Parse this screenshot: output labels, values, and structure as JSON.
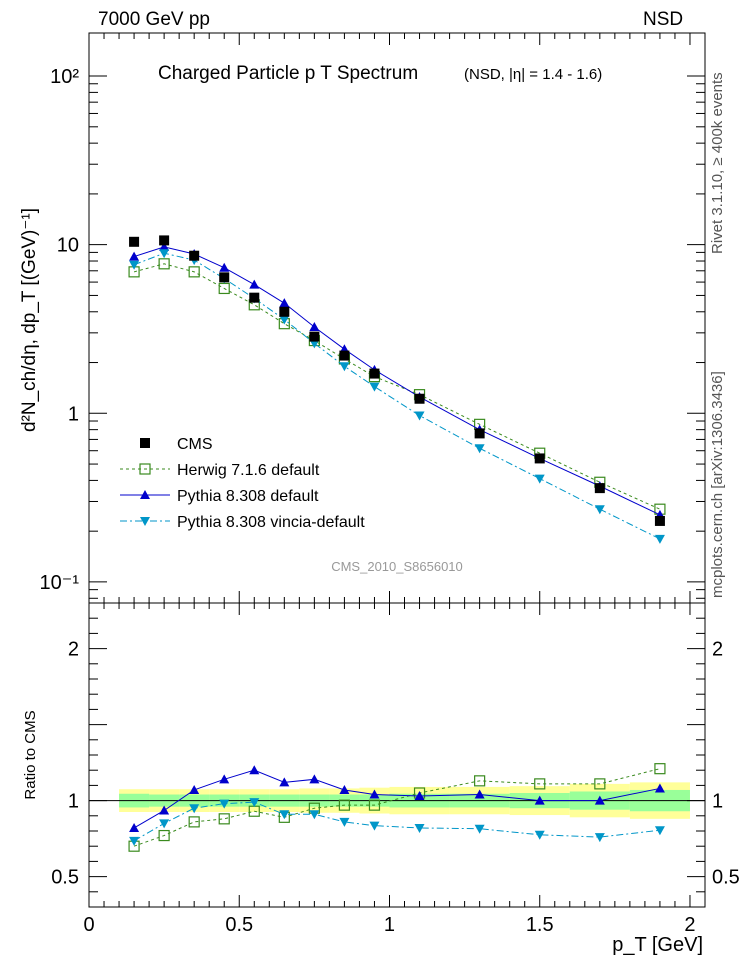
{
  "header": {
    "left": "7000 GeV pp",
    "right": "NSD"
  },
  "side": {
    "rivet": "Rivet 3.1.10, ≥ 400k events",
    "mcplots": "mcplots.cern.ch [arXiv:1306.3436]"
  },
  "chart_data": [
    {
      "type": "scatter",
      "title": "Charged Particle p T Spectrum",
      "subtitle": "(NSD, |η| = 1.4 - 1.6)",
      "watermark": "CMS_2010_S8656010",
      "ylabel": "d²N_ch/dη, dp_T [(GeV)⁻¹]",
      "yscale": "log",
      "xlim": [
        0,
        2.05
      ],
      "ylim": [
        0.075,
        180
      ],
      "yticklabels": [
        "10⁻¹",
        "1",
        "10",
        "10²"
      ],
      "legend_position": "bottom-left",
      "series": [
        {
          "name": "CMS",
          "color": "#000000",
          "marker": "square",
          "x": [
            0.15,
            0.25,
            0.35,
            0.45,
            0.55,
            0.65,
            0.75,
            0.85,
            0.95,
            1.1,
            1.3,
            1.5,
            1.7,
            1.9
          ],
          "y": [
            10.4,
            10.6,
            8.6,
            6.4,
            4.85,
            4.0,
            2.85,
            2.2,
            1.72,
            1.22,
            0.76,
            0.54,
            0.36,
            0.23
          ]
        },
        {
          "name": "Herwig 7.1.6 default",
          "color": "#3a8a1e",
          "marker": "open-square",
          "line": "dotted",
          "x": [
            0.15,
            0.25,
            0.35,
            0.45,
            0.55,
            0.65,
            0.75,
            0.85,
            0.95,
            1.1,
            1.3,
            1.5,
            1.7,
            1.9
          ],
          "y": [
            6.9,
            7.7,
            6.9,
            5.5,
            4.4,
            3.4,
            2.7,
            2.1,
            1.65,
            1.29,
            0.86,
            0.58,
            0.39,
            0.27
          ]
        },
        {
          "name": "Pythia 8.308 default",
          "color": "#0000cc",
          "marker": "triangle-up",
          "line": "solid",
          "x": [
            0.15,
            0.25,
            0.35,
            0.45,
            0.55,
            0.65,
            0.75,
            0.85,
            0.95,
            1.1,
            1.3,
            1.5,
            1.7,
            1.9
          ],
          "y": [
            8.5,
            9.7,
            8.8,
            7.3,
            5.8,
            4.5,
            3.25,
            2.4,
            1.81,
            1.25,
            0.8,
            0.54,
            0.37,
            0.25
          ]
        },
        {
          "name": "Pythia 8.308 vincia-default",
          "color": "#0096c8",
          "marker": "triangle-down",
          "line": "dashdot",
          "x": [
            0.15,
            0.25,
            0.35,
            0.45,
            0.55,
            0.65,
            0.75,
            0.85,
            0.95,
            1.1,
            1.3,
            1.5,
            1.7,
            1.9
          ],
          "y": [
            7.6,
            8.9,
            8.1,
            6.3,
            4.8,
            3.6,
            2.6,
            1.9,
            1.44,
            0.97,
            0.62,
            0.41,
            0.27,
            0.18
          ]
        }
      ]
    },
    {
      "type": "scatter",
      "ylabel": "Ratio to CMS",
      "xlabel": "p_T [GeV]",
      "xlim": [
        0,
        2.05
      ],
      "ylim": [
        0.3,
        2.3
      ],
      "xticklabels": [
        "0",
        "0.5",
        "1",
        "1.5",
        "2"
      ],
      "yticklabels": [
        "0.5",
        "1",
        "2"
      ],
      "bands": {
        "x_edges": [
          0.1,
          0.2,
          0.3,
          0.4,
          0.5,
          0.6,
          0.7,
          0.8,
          0.9,
          1.0,
          1.2,
          1.4,
          1.6,
          1.8,
          2.0
        ],
        "green_halfwidth": [
          0.045,
          0.04,
          0.04,
          0.04,
          0.04,
          0.04,
          0.04,
          0.04,
          0.04,
          0.045,
          0.045,
          0.05,
          0.06,
          0.07
        ],
        "yellow_halfwidth": [
          0.075,
          0.075,
          0.075,
          0.075,
          0.075,
          0.075,
          0.08,
          0.08,
          0.085,
          0.09,
          0.09,
          0.095,
          0.11,
          0.12
        ]
      },
      "series": [
        {
          "name": "Herwig 7.1.6 default",
          "color": "#3a8a1e",
          "marker": "open-square",
          "line": "dotted",
          "x": [
            0.15,
            0.25,
            0.35,
            0.45,
            0.55,
            0.65,
            0.75,
            0.85,
            0.95,
            1.1,
            1.3,
            1.5,
            1.7,
            1.9
          ],
          "y": [
            0.7,
            0.77,
            0.86,
            0.88,
            0.93,
            0.89,
            0.95,
            0.97,
            0.97,
            1.05,
            1.13,
            1.11,
            1.11,
            1.21
          ]
        },
        {
          "name": "Pythia 8.308 default",
          "color": "#0000cc",
          "marker": "triangle-up",
          "line": "solid",
          "x": [
            0.15,
            0.25,
            0.35,
            0.45,
            0.55,
            0.65,
            0.75,
            0.85,
            0.95,
            1.1,
            1.3,
            1.5,
            1.7,
            1.9
          ],
          "y": [
            0.82,
            0.935,
            1.07,
            1.14,
            1.2,
            1.12,
            1.14,
            1.07,
            1.04,
            1.03,
            1.04,
            1.0,
            1.0,
            1.08
          ]
        },
        {
          "name": "Pythia 8.308 vincia-default",
          "color": "#0096c8",
          "marker": "triangle-down",
          "line": "dashdot",
          "x": [
            0.15,
            0.25,
            0.35,
            0.45,
            0.55,
            0.65,
            0.75,
            0.85,
            0.95,
            1.1,
            1.3,
            1.5,
            1.7,
            1.9
          ],
          "y": [
            0.735,
            0.85,
            0.95,
            0.98,
            0.99,
            0.91,
            0.91,
            0.86,
            0.835,
            0.82,
            0.815,
            0.775,
            0.76,
            0.805
          ]
        }
      ]
    }
  ]
}
